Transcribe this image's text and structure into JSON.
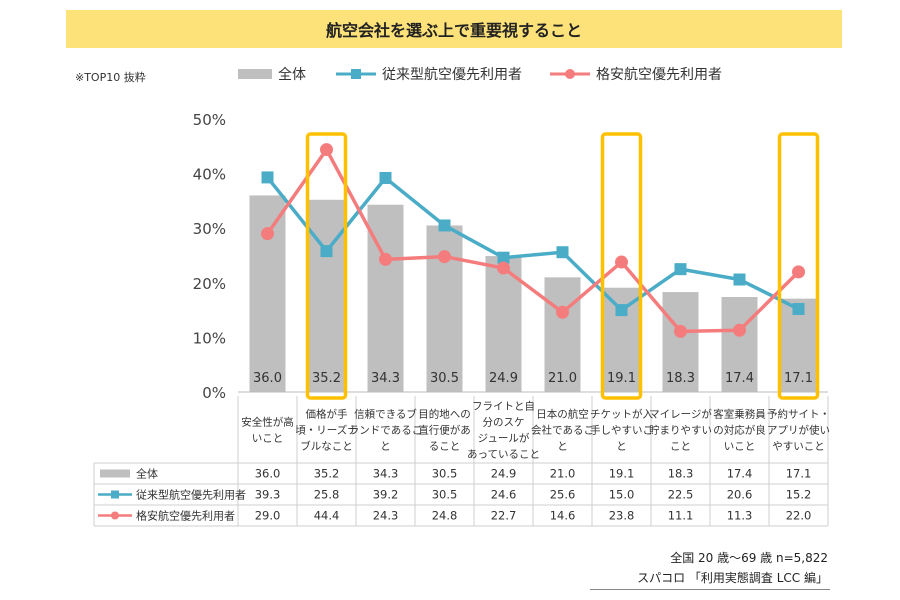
{
  "title": "航空会社を選ぶ上で重要視すること",
  "note": "※TOP10 抜粋",
  "footer": {
    "line1": "全国 20 歳～69 歳 n=5,822",
    "line2": "スパコロ 「利用実態調査 LCC 編」"
  },
  "colors": {
    "bar": "#bfbfbf",
    "series1": "#4aacc6",
    "series2": "#f47c7c",
    "highlight": "#ffc000",
    "title_bg": "#fde27a"
  },
  "chart_data": {
    "type": "bar",
    "title": "航空会社を選ぶ上で重要視すること",
    "ylim": [
      0,
      50
    ],
    "yticks": [
      "0%",
      "10%",
      "20%",
      "30%",
      "40%",
      "50%"
    ],
    "categories": [
      [
        "安全性が高",
        "いこと"
      ],
      [
        "価格が手",
        "頃・リーズナ",
        "ブルなこと"
      ],
      [
        "信頼できるブ",
        "ランドであるこ",
        "と"
      ],
      [
        "目的地への",
        "直行便があ",
        "ること"
      ],
      [
        "フライトと自",
        "分のスケ",
        "ジュールが",
        "あっていること"
      ],
      [
        "日本の航空",
        "会社であるこ",
        "と"
      ],
      [
        "チケットが入",
        "手しやすいこ",
        "と"
      ],
      [
        "マイレージが",
        "貯まりやすい",
        "こと"
      ],
      [
        "客室乗務員",
        "の対応が良",
        "いこと"
      ],
      [
        "予約サイト・",
        "アプリが使い",
        "やすいこと"
      ]
    ],
    "highlighted_categories": [
      1,
      6,
      9
    ],
    "series": [
      {
        "name": "全体",
        "type": "bar",
        "values": [
          36.0,
          35.2,
          34.3,
          30.5,
          24.9,
          21.0,
          19.1,
          18.3,
          17.4,
          17.1
        ]
      },
      {
        "name": "従来型航空優先利用者",
        "type": "line",
        "values": [
          39.3,
          25.8,
          39.2,
          30.5,
          24.6,
          25.6,
          15.0,
          22.5,
          20.6,
          15.2
        ]
      },
      {
        "name": "格安航空優先利用者",
        "type": "line",
        "values": [
          29.0,
          44.4,
          24.3,
          24.8,
          22.7,
          14.6,
          23.8,
          11.1,
          11.3,
          22.0
        ]
      }
    ],
    "table_values": [
      [
        "36.0",
        "35.2",
        "34.3",
        "30.5",
        "24.9",
        "21.0",
        "19.1",
        "18.3",
        "17.4",
        "17.1"
      ],
      [
        "39.3",
        "25.8",
        "39.2",
        "30.5",
        "24.6",
        "25.6",
        "15.0",
        "22.5",
        "20.6",
        "15.2"
      ],
      [
        "29.0",
        "44.4",
        "24.3",
        "24.8",
        "22.7",
        "14.6",
        "23.8",
        "11.1",
        "11.3",
        "22.0"
      ]
    ],
    "legend": [
      "全体",
      "従来型航空優先利用者",
      "格安航空優先利用者"
    ]
  }
}
